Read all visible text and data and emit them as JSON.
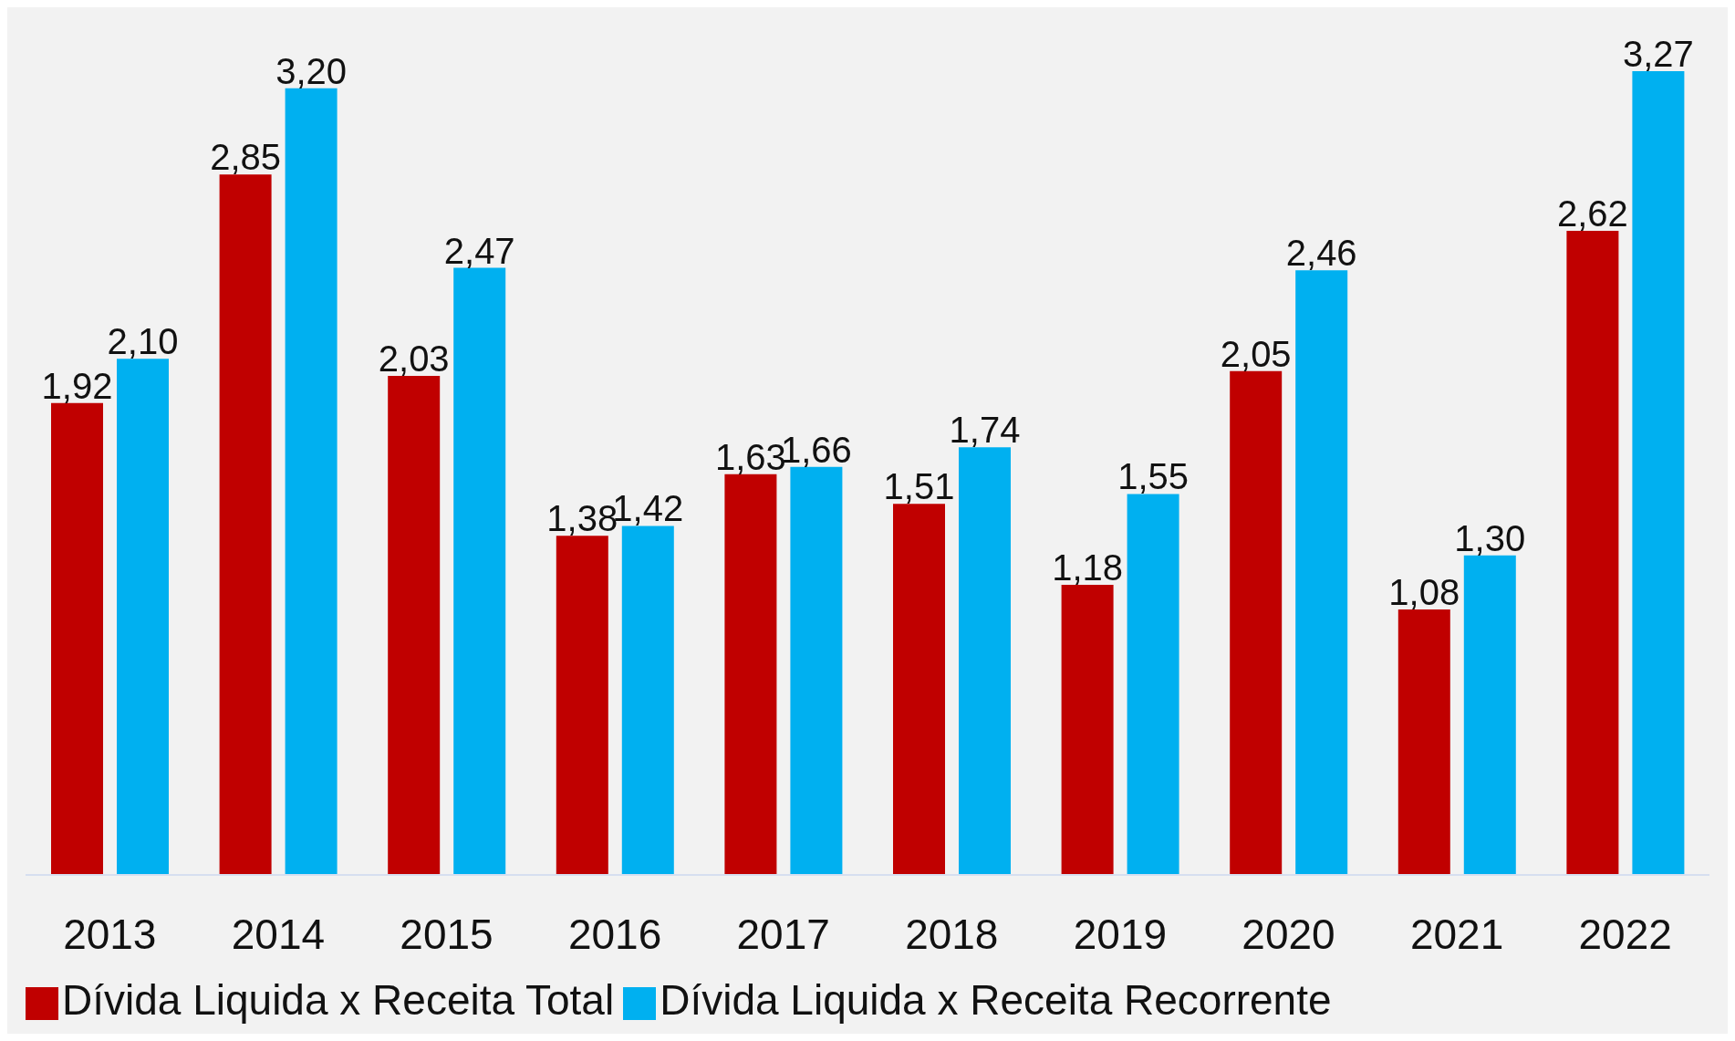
{
  "chart_data": {
    "type": "bar",
    "categories": [
      "2013",
      "2014",
      "2015",
      "2016",
      "2017",
      "2018",
      "2019",
      "2020",
      "2021",
      "2022"
    ],
    "series": [
      {
        "name": "Dívida Liquida x Receita Total",
        "color": "#c00000",
        "values": [
          1.92,
          2.85,
          2.03,
          1.38,
          1.63,
          1.51,
          1.18,
          2.05,
          1.08,
          2.62
        ],
        "value_labels": [
          "1,92",
          "2,85",
          "2,03",
          "1,38",
          "1,63",
          "1,51",
          "1,18",
          "2,05",
          "1,08",
          "2,62"
        ]
      },
      {
        "name": "Dívida Liquida x Receita Recorrente",
        "color": "#00b0f0",
        "values": [
          2.1,
          3.2,
          2.47,
          1.42,
          1.66,
          1.74,
          1.55,
          2.46,
          1.3,
          3.27
        ],
        "value_labels": [
          "2,10",
          "3,20",
          "2,47",
          "1,42",
          "1,66",
          "1,74",
          "1,55",
          "2,46",
          "1,30",
          "3,27"
        ]
      }
    ],
    "legend": "bottom left",
    "grid": false
  }
}
